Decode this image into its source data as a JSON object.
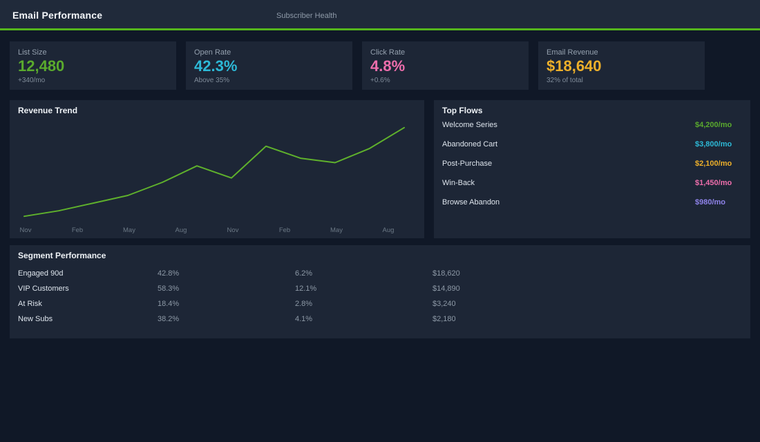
{
  "header": {
    "title": "Email Performance",
    "nav_item": "Subscriber Health"
  },
  "colors": {
    "page_bg": "#101827",
    "header_bg": "#202a3a",
    "card_bg": "#1d2636",
    "accent_green": "#55b61c",
    "green": "#5aaa2d",
    "cyan": "#2db9d7",
    "pink": "#ee6eac",
    "amber": "#eeb02a",
    "purple": "#8f83ea"
  },
  "kpis": [
    {
      "label": "List Size",
      "value": "12,480",
      "sub": "+340/mo",
      "color": "#5aaa2d"
    },
    {
      "label": "Open Rate",
      "value": "42.3%",
      "sub": "Above 35%",
      "color": "#2db9d7"
    },
    {
      "label": "Click Rate",
      "value": "4.8%",
      "sub": "+0.6%",
      "color": "#ee6eac"
    },
    {
      "label": "Email Revenue",
      "value": "$18,640",
      "sub": "32% of total",
      "color": "#eeb02a"
    }
  ],
  "revenue_trend": {
    "title": "Revenue Trend"
  },
  "chart_data": {
    "type": "line",
    "title": "Revenue Trend",
    "x_tick_labels": [
      "Nov",
      "Feb",
      "May",
      "Aug",
      "Nov",
      "Feb",
      "May",
      "Aug"
    ],
    "series": [
      {
        "name": "Revenue",
        "color": "#5fb12c",
        "values": [
          10,
          15,
          22,
          29,
          41,
          56,
          45,
          74,
          63,
          59,
          72,
          91
        ]
      }
    ],
    "xlabel": "",
    "ylabel": "",
    "ylim": [
      0,
      100
    ],
    "grid": false,
    "legend": false
  },
  "top_flows": {
    "title": "Top Flows",
    "items": [
      {
        "name": "Welcome Series",
        "value": "$4,200/mo",
        "color": "#5aaa2d"
      },
      {
        "name": "Abandoned Cart",
        "value": "$3,800/mo",
        "color": "#2db9d7"
      },
      {
        "name": "Post-Purchase",
        "value": "$2,100/mo",
        "color": "#eeb02a"
      },
      {
        "name": "Win-Back",
        "value": "$1,450/mo",
        "color": "#ee6eac"
      },
      {
        "name": "Browse Abandon",
        "value": "$980/mo",
        "color": "#8f83ea"
      }
    ]
  },
  "segments": {
    "title": "Segment Performance",
    "rows": [
      {
        "name": "Engaged 90d",
        "open_rate": "42.8%",
        "click_rate": "6.2%",
        "revenue": "$18,620"
      },
      {
        "name": "VIP Customers",
        "open_rate": "58.3%",
        "click_rate": "12.1%",
        "revenue": "$14,890"
      },
      {
        "name": "At Risk",
        "open_rate": "18.4%",
        "click_rate": "2.8%",
        "revenue": "$3,240"
      },
      {
        "name": "New Subs",
        "open_rate": "38.2%",
        "click_rate": "4.1%",
        "revenue": "$2,180"
      }
    ]
  }
}
